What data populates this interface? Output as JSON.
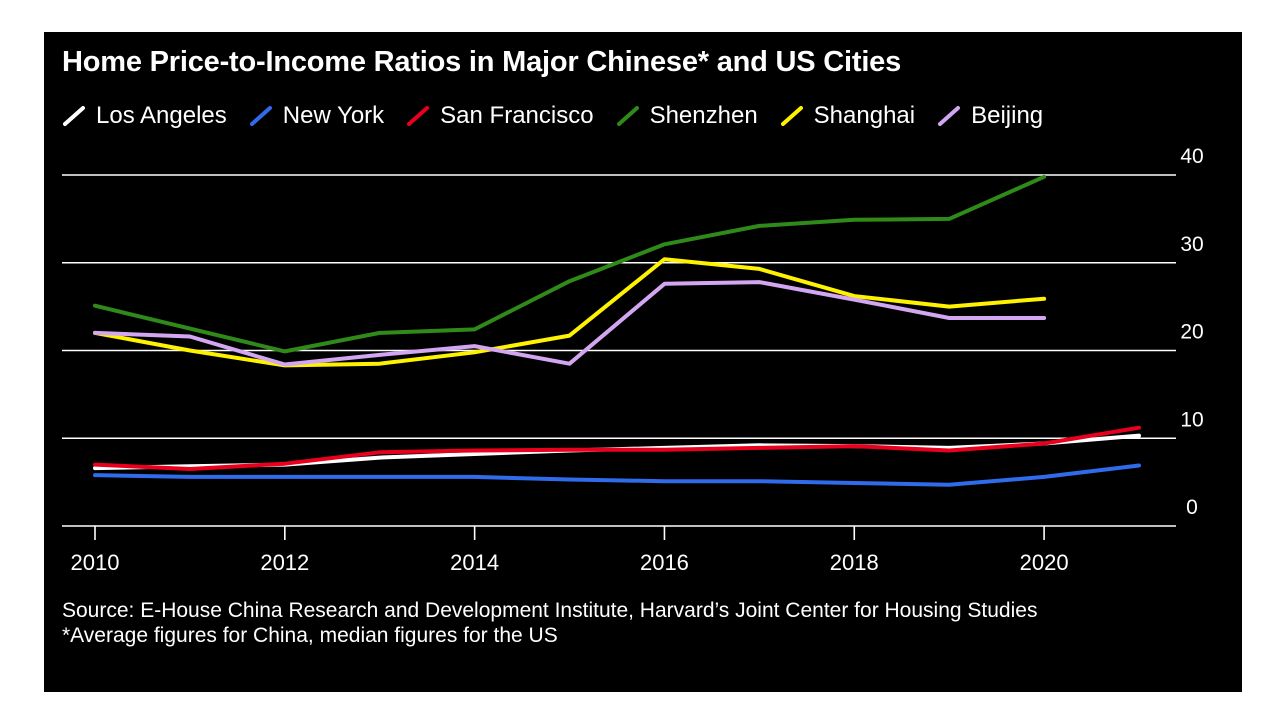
{
  "chart_data": {
    "type": "line",
    "title": "Home Price-to-Income Ratios in Major Chinese* and US Cities",
    "x": [
      2010,
      2011,
      2012,
      2013,
      2014,
      2015,
      2016,
      2017,
      2018,
      2019,
      2020,
      2021
    ],
    "xticks": [
      "2010",
      "2012",
      "2014",
      "2016",
      "2018",
      "2020"
    ],
    "yticks": [
      "0",
      "10",
      "20",
      "30",
      "40"
    ],
    "ylim": [
      0,
      40
    ],
    "xlim": [
      2010,
      2021
    ],
    "grid": true,
    "legend_position": "top-left",
    "y_axis_side": "right",
    "series": [
      {
        "name": "Los Angeles",
        "color": "#ffffff",
        "values": [
          6.6,
          6.8,
          7.0,
          7.8,
          8.2,
          8.6,
          8.9,
          9.2,
          9.1,
          8.9,
          9.4,
          10.3
        ]
      },
      {
        "name": "New York",
        "color": "#2f6bea",
        "values": [
          5.8,
          5.6,
          5.6,
          5.6,
          5.6,
          5.3,
          5.1,
          5.1,
          4.9,
          4.7,
          5.6,
          6.9
        ]
      },
      {
        "name": "San Francisco",
        "color": "#e8001c",
        "values": [
          7.0,
          6.5,
          7.1,
          8.4,
          8.6,
          8.7,
          8.7,
          8.9,
          9.1,
          8.6,
          9.4,
          11.2
        ]
      },
      {
        "name": "Shenzhen",
        "color": "#2f8a19",
        "values": [
          25.1,
          22.5,
          19.9,
          22.0,
          22.4,
          27.9,
          32.1,
          34.2,
          34.9,
          35.0,
          39.8,
          null
        ]
      },
      {
        "name": "Shanghai",
        "color": "#fff200",
        "values": [
          22.0,
          20.0,
          18.3,
          18.5,
          19.8,
          21.7,
          30.4,
          29.3,
          26.2,
          25.0,
          25.9,
          null
        ]
      },
      {
        "name": "Beijing",
        "color": "#d3a6f2",
        "values": [
          22.0,
          21.6,
          18.4,
          19.5,
          20.5,
          18.5,
          27.6,
          27.8,
          25.8,
          23.7,
          23.7,
          null
        ]
      }
    ],
    "notes": [
      "Source: E-House China Research and Development Institute, Harvard’s Joint Center for Housing Studies",
      "*Average figures for China, median figures for the US"
    ]
  }
}
